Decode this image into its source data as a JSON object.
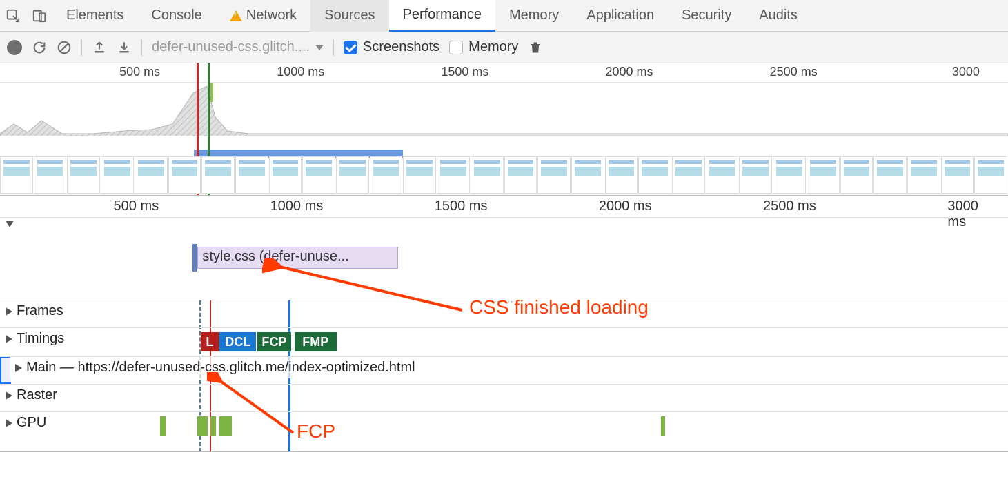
{
  "tabs": {
    "elements": "Elements",
    "console": "Console",
    "network": "Network",
    "sources": "Sources",
    "performance": "Performance",
    "memory": "Memory",
    "application": "Application",
    "security": "Security",
    "audits": "Audits"
  },
  "toolbar": {
    "dropdown": "defer-unused-css.glitch....",
    "screenshots": "Screenshots",
    "memory": "Memory"
  },
  "timescale": {
    "step_ms": 500,
    "max_ms": 3000,
    "ticks": [
      "500 ms",
      "1000 ms",
      "1500 ms",
      "2000 ms",
      "2500 ms",
      "3000"
    ],
    "ticks2": [
      "500 ms",
      "1000 ms",
      "1500 ms",
      "2000 ms",
      "2500 ms",
      "3000 ms"
    ],
    "tick_pct": [
      16.3,
      32.6,
      48.9,
      65.2,
      81.5,
      97.6
    ]
  },
  "overview": {
    "red_marker_pct": 19.5,
    "green_marker_pct": 20.6,
    "sel_start_pct": 19.2,
    "sel_end_pct": 40.0,
    "greenbar_pct": 20.9,
    "filmstrip_count": 30,
    "cpu_polygon_fill": "#e0e0e0",
    "cpu_polygon_stroke": "#b5b5b5"
  },
  "network": {
    "label": "Network",
    "item_label": "style.css (defer-unuse...",
    "item_start_pct": 19.6,
    "item_end_pct": 39.5,
    "tick_pct": 19.1,
    "item_color": "#e6ddf4",
    "item_border": "#b3a3d6"
  },
  "sections": {
    "frames": "Frames",
    "timings": "Timings",
    "main": "Main — https://defer-unused-css.glitch.me/index-optimized.html",
    "raster": "Raster",
    "gpu": "GPU"
  },
  "timings": {
    "badges": [
      {
        "label": "L",
        "color": "#b71c1c",
        "start_pct": 19.9,
        "width_pct": 1.8
      },
      {
        "label": "DCL",
        "color": "#1976d2",
        "start_pct": 21.8,
        "width_pct": 3.6
      },
      {
        "label": "FCP",
        "color": "#1e6b3a",
        "start_pct": 25.5,
        "width_pct": 3.4
      },
      {
        "label": "FMP",
        "color": "#1e6b3a",
        "start_pct": 29.2,
        "width_pct": 4.2
      }
    ]
  },
  "markers": {
    "dashed_pct": 19.8,
    "blue_pct": 28.6,
    "red_pct": 20.8
  },
  "gpu": {
    "chunks_pct": [
      {
        "start": 15.9,
        "width": 0.5
      },
      {
        "start": 19.6,
        "width": 1.0
      },
      {
        "start": 20.9,
        "width": 0.5
      },
      {
        "start": 21.8,
        "width": 1.2
      },
      {
        "start": 65.6,
        "width": 0.4
      }
    ],
    "color": "#7cb342"
  },
  "annotations": {
    "css_finished": "CSS finished loading",
    "fcp": "FCP",
    "arrow_color": "#ff3b00"
  }
}
